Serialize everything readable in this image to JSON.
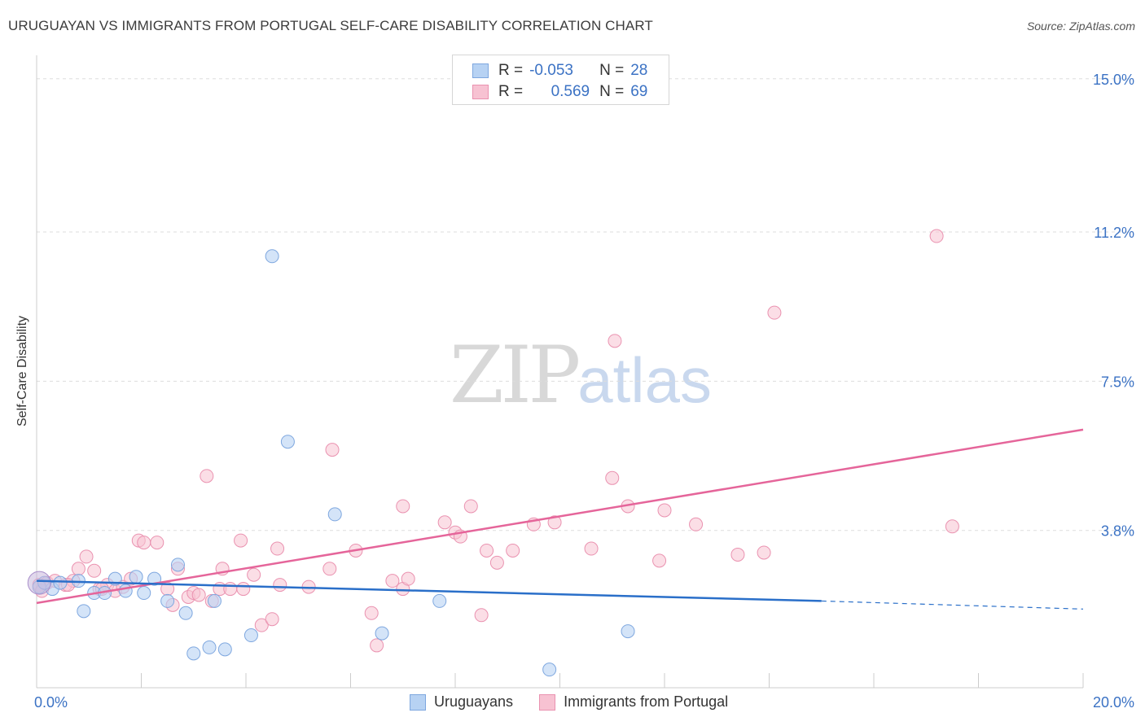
{
  "title": "URUGUAYAN VS IMMIGRANTS FROM PORTUGAL SELF-CARE DISABILITY CORRELATION CHART",
  "source": "Source: ZipAtlas.com",
  "watermark": {
    "zip": "ZIP",
    "atlas": "atlas"
  },
  "legend": {
    "series1": {
      "r_label": "R =",
      "r_value": "-0.053",
      "n_label": "N =",
      "n_value": "28"
    },
    "series2": {
      "r_label": "R =",
      "r_value": "0.569",
      "n_label": "N =",
      "n_value": "69"
    }
  },
  "colors": {
    "blue_fill": "#b7d2f3",
    "blue_stroke": "#7ea7df",
    "blue_line": "#2a6fc9",
    "pink_fill": "#f7c2d2",
    "pink_stroke": "#ea92b0",
    "pink_line": "#e5659a",
    "grid": "#dddddd",
    "axis_text": "#3b72c4"
  },
  "chart_data": {
    "type": "scatter",
    "title": "URUGUAYAN VS IMMIGRANTS FROM PORTUGAL SELF-CARE DISABILITY CORRELATION CHART",
    "xlabel": "",
    "ylabel": "Self-Care Disability",
    "xlim": [
      0,
      20
    ],
    "ylim": [
      0,
      15.5
    ],
    "x_tick_labels": [
      "0.0%",
      "20.0%"
    ],
    "y_ticks": [
      3.8,
      7.5,
      11.2,
      15.0
    ],
    "y_tick_labels": [
      "3.8%",
      "7.5%",
      "11.2%",
      "15.0%"
    ],
    "legend_position": "top-center",
    "series": [
      {
        "name": "Uruguayans",
        "r": -0.053,
        "n": 28,
        "trend": {
          "x0": 0,
          "y0": 2.55,
          "x1": 15,
          "y1": 2.05,
          "dash_to_x": 20,
          "dash_to_y": 1.85
        },
        "points": [
          [
            0.05,
            2.4
          ],
          [
            0.3,
            2.35
          ],
          [
            0.45,
            2.5
          ],
          [
            0.8,
            2.55
          ],
          [
            0.9,
            1.8
          ],
          [
            1.1,
            2.25
          ],
          [
            1.3,
            2.25
          ],
          [
            1.5,
            2.6
          ],
          [
            1.7,
            2.3
          ],
          [
            1.9,
            2.65
          ],
          [
            2.05,
            2.25
          ],
          [
            2.25,
            2.6
          ],
          [
            2.5,
            2.05
          ],
          [
            2.7,
            2.95
          ],
          [
            2.85,
            1.75
          ],
          [
            3.0,
            0.75
          ],
          [
            3.3,
            0.9
          ],
          [
            3.4,
            2.05
          ],
          [
            3.6,
            0.85
          ],
          [
            4.1,
            1.2
          ],
          [
            4.5,
            10.6
          ],
          [
            4.8,
            6.0
          ],
          [
            5.7,
            4.2
          ],
          [
            6.6,
            1.25
          ],
          [
            7.7,
            2.05
          ],
          [
            9.8,
            0.35
          ],
          [
            11.3,
            1.3
          ],
          [
            0.15,
            2.5
          ]
        ]
      },
      {
        "name": "Immigrants from Portugal",
        "r": 0.569,
        "n": 69,
        "trend": {
          "x0": 0,
          "y0": 2.0,
          "x1": 20,
          "y1": 6.3
        },
        "points": [
          [
            0.05,
            2.45
          ],
          [
            0.2,
            2.5
          ],
          [
            0.35,
            2.55
          ],
          [
            0.55,
            2.45
          ],
          [
            0.7,
            2.55
          ],
          [
            0.8,
            2.85
          ],
          [
            0.95,
            3.15
          ],
          [
            1.1,
            2.8
          ],
          [
            1.2,
            2.35
          ],
          [
            1.35,
            2.45
          ],
          [
            1.5,
            2.3
          ],
          [
            1.65,
            2.4
          ],
          [
            1.8,
            2.6
          ],
          [
            1.95,
            3.55
          ],
          [
            2.05,
            3.5
          ],
          [
            2.3,
            3.5
          ],
          [
            2.5,
            2.35
          ],
          [
            2.6,
            1.95
          ],
          [
            2.7,
            2.85
          ],
          [
            2.9,
            2.15
          ],
          [
            3.0,
            2.25
          ],
          [
            3.1,
            2.2
          ],
          [
            3.25,
            5.15
          ],
          [
            3.35,
            2.05
          ],
          [
            3.5,
            2.35
          ],
          [
            3.55,
            2.85
          ],
          [
            3.7,
            2.35
          ],
          [
            3.9,
            3.55
          ],
          [
            3.95,
            2.35
          ],
          [
            4.15,
            2.7
          ],
          [
            4.3,
            1.45
          ],
          [
            4.5,
            1.6
          ],
          [
            4.6,
            3.35
          ],
          [
            4.65,
            2.45
          ],
          [
            5.2,
            2.4
          ],
          [
            5.6,
            2.85
          ],
          [
            5.65,
            5.8
          ],
          [
            6.1,
            3.3
          ],
          [
            6.4,
            1.75
          ],
          [
            6.5,
            0.95
          ],
          [
            6.8,
            2.55
          ],
          [
            7.0,
            4.4
          ],
          [
            7.0,
            2.35
          ],
          [
            7.1,
            2.6
          ],
          [
            7.8,
            4.0
          ],
          [
            8.0,
            3.75
          ],
          [
            8.1,
            3.65
          ],
          [
            8.3,
            4.4
          ],
          [
            8.5,
            1.7
          ],
          [
            8.6,
            3.3
          ],
          [
            8.8,
            3.0
          ],
          [
            9.1,
            3.3
          ],
          [
            9.5,
            3.95
          ],
          [
            9.9,
            4.0
          ],
          [
            10.6,
            3.35
          ],
          [
            11.0,
            5.1
          ],
          [
            11.05,
            8.5
          ],
          [
            11.3,
            4.4
          ],
          [
            11.9,
            3.05
          ],
          [
            12.0,
            4.3
          ],
          [
            12.6,
            3.95
          ],
          [
            13.4,
            3.2
          ],
          [
            13.9,
            3.25
          ],
          [
            14.1,
            9.2
          ],
          [
            17.2,
            11.1
          ],
          [
            17.5,
            3.9
          ],
          [
            0.1,
            2.3
          ],
          [
            0.6,
            2.45
          ],
          [
            1.25,
            2.35
          ]
        ]
      }
    ]
  },
  "bottom_legend": {
    "item1": "Uruguayans",
    "item2": "Immigrants from Portugal"
  }
}
